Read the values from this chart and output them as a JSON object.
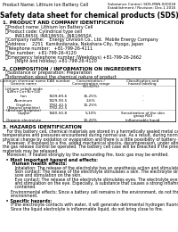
{
  "bg_color": "#ffffff",
  "header_left": "Product Name: Lithium Ion Battery Cell",
  "header_right_line1": "Substance Control: SDS-MSN-000018",
  "header_right_line2": "Establishment / Revision: Dec.1 2016",
  "title": "Safety data sheet for chemical products (SDS)",
  "section1_title": "1. PRODUCT AND COMPANY IDENTIFICATION",
  "section1_lines": [
    "  ・Product name: Lithium Ion Battery Cell",
    "  ・Product code: Cylindrical type cell",
    "         INR18650J, INR18650L, INR18650A",
    "  ・Company name:    Energy Division Co., Ltd.  Mobile Energy Company",
    "  ・Address:    2251  Kamikodanaka, Nakahara-City, Hyogo, Japan",
    "  ・Telephone number:   +81-799-26-4111",
    "  ・Fax number:  +81-799-26-4120",
    "  ・Emergency telephone number (Weekdays) +81-799-26-2662",
    "         (Night and holiday) +81-799-26-4120"
  ],
  "section2_title": "2. COMPOSITION / INFORMATION ON INGREDIENTS",
  "section2_sub": "  ・Substance or preparation: Preparation",
  "section2_table_header": "  ・Information about the chemical nature of product",
  "table_col0": "Common chemical name /\nGeneric name",
  "table_col1": "CAS number",
  "table_col2": "Concentration /\nConcentration range\n(50-60%)",
  "table_col3": "Classification and\nhazard labeling",
  "table_rows": [
    [
      "Lithium cobalt oxide\n(LiMn+Co+Ni+O4)",
      "-",
      "",
      ""
    ],
    [
      "Iron",
      "7439-89-6",
      "15-25%",
      "-"
    ],
    [
      "Aluminum",
      "7429-90-5",
      "2-6%",
      "-"
    ],
    [
      "Graphite\n(Natural graphite)\n(Artificial graphite)",
      "7782-42-5\n7782-42-5",
      "10-25%",
      ""
    ],
    [
      "Copper",
      "7440-50-8",
      "5-10%",
      "Sensitization of the skin\ngroup R43"
    ],
    [
      "Organic electrolyte",
      "-",
      "10-20%",
      "Inflammable liquid"
    ]
  ],
  "section3_title": "3. HAZARDS IDENTIFICATION",
  "section3_body": [
    "   For this battery cell, chemical materials are stored in a hermetically sealed metal case, designed to withstand",
    "temperatures and pressures encountered during normal use. As a result, during normal use, there is no",
    "physical change by oxidation or evaporation and there is a little possibility of battery electrolyte leakage.",
    "   However, if exposed to a fire, added mechanical shocks, decompression, under abnormal miss-use,",
    "the gas release control be operated. The battery cell case will be breached if the pressure, hazardous",
    "materials may be released.",
    "   Moreover, if heated strongly by the surrounding fire, toxic gas may be emitted."
  ],
  "section3_bullet1": "  • Most important hazard and effects:",
  "section3_human": "      Human health effects:",
  "section3_human_body": [
    "         Inhalation: The release of the electrolyte has an anesthesia action and stimulates a respiratory tract.",
    "         Skin contact: The release of the electrolyte stimulates a skin. The electrolyte skin contact causes a",
    "         sore and stimulation on the skin.",
    "         Eye contact: The release of the electrolyte stimulates eyes. The electrolyte eye contact causes a sore",
    "         and stimulation on the eye. Especially, a substance that causes a strong inflammation of the eyes is",
    "         contained."
  ],
  "section3_env1": "      Environmental effects: Since a battery cell remains in the environment, do not throw out it into the",
  "section3_env2": "      environment.",
  "section3_bullet2": "  • Specific hazards:",
  "section3_specific": [
    "      If the electrolyte contacts with water, it will generate detrimental hydrogen fluoride.",
    "      Since the liquid electrolyte is inflammable liquid, do not bring close to fire."
  ]
}
